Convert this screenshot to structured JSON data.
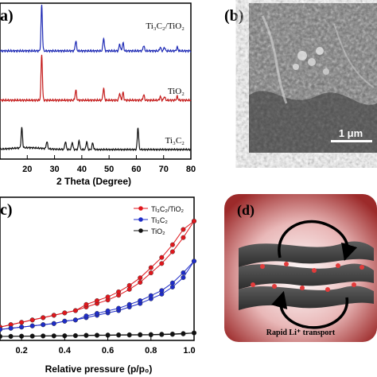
{
  "panels": {
    "a": {
      "label": "a)"
    },
    "b": {
      "label": "(b)",
      "scale_bar": "1 μm"
    },
    "c": {
      "label": "c)"
    },
    "d": {
      "label": "(d)",
      "caption": "Rapid Li⁺ transport"
    }
  },
  "chart_data": [
    {
      "type": "line",
      "panel": "a",
      "xlabel": "2 Theta (Degree)",
      "xlim": [
        10,
        80
      ],
      "x_ticks": [
        "20",
        "30",
        "40",
        "50",
        "60",
        "70",
        "80"
      ],
      "series": [
        {
          "name": "Ti₃C₂/TiO₂",
          "color": "#1f2bb5",
          "peaks": [
            [
              25.3,
              1.0
            ],
            [
              37.8,
              0.22
            ],
            [
              48.0,
              0.28
            ],
            [
              53.9,
              0.15
            ],
            [
              55.1,
              0.18
            ],
            [
              62.7,
              0.12
            ],
            [
              68.8,
              0.08
            ],
            [
              70.3,
              0.08
            ],
            [
              75.0,
              0.08
            ]
          ]
        },
        {
          "name": "TiO₂",
          "color": "#c41a1a",
          "peaks": [
            [
              25.3,
              1.0
            ],
            [
              37.8,
              0.22
            ],
            [
              48.0,
              0.26
            ],
            [
              53.9,
              0.15
            ],
            [
              55.1,
              0.17
            ],
            [
              62.7,
              0.12
            ],
            [
              68.8,
              0.08
            ],
            [
              70.3,
              0.08
            ],
            [
              75.0,
              0.08
            ]
          ]
        },
        {
          "name": "Ti₃C₂",
          "color": "#111111",
          "peaks": [
            [
              18.0,
              0.55
            ],
            [
              27.2,
              0.2
            ],
            [
              34.0,
              0.22
            ],
            [
              36.5,
              0.2
            ],
            [
              39.0,
              0.25
            ],
            [
              41.8,
              0.22
            ],
            [
              44.0,
              0.18
            ],
            [
              60.6,
              0.6
            ]
          ]
        }
      ]
    },
    {
      "type": "line",
      "panel": "c",
      "xlabel": "Relative pressure (p/p₀)",
      "xlim": [
        0.1,
        1.0
      ],
      "x_ticks": [
        "0.2",
        "0.4",
        "0.6",
        "0.8",
        "1.0"
      ],
      "legend": "top-right",
      "series": [
        {
          "name": "Ti₃C₂/TiO₂",
          "color": "#e0161c",
          "x": [
            0.1,
            0.15,
            0.2,
            0.25,
            0.3,
            0.35,
            0.4,
            0.45,
            0.5,
            0.55,
            0.6,
            0.65,
            0.7,
            0.75,
            0.8,
            0.85,
            0.9,
            0.95,
            1.0
          ],
          "y": [
            0.1,
            0.12,
            0.14,
            0.16,
            0.18,
            0.2,
            0.22,
            0.24,
            0.27,
            0.3,
            0.33,
            0.37,
            0.42,
            0.48,
            0.56,
            0.64,
            0.74,
            0.86,
            1.0
          ]
        },
        {
          "name": "Ti₃C₂",
          "color": "#1e2cc8",
          "x": [
            0.1,
            0.15,
            0.2,
            0.25,
            0.3,
            0.35,
            0.4,
            0.45,
            0.5,
            0.55,
            0.6,
            0.65,
            0.7,
            0.75,
            0.8,
            0.85,
            0.9,
            0.95,
            1.0
          ],
          "y": [
            0.08,
            0.09,
            0.1,
            0.11,
            0.12,
            0.13,
            0.15,
            0.16,
            0.18,
            0.2,
            0.22,
            0.24,
            0.27,
            0.3,
            0.34,
            0.38,
            0.44,
            0.52,
            0.66
          ]
        },
        {
          "name": "TiO₂",
          "color": "#111111",
          "x": [
            0.1,
            0.15,
            0.2,
            0.25,
            0.3,
            0.35,
            0.4,
            0.45,
            0.5,
            0.55,
            0.6,
            0.65,
            0.7,
            0.75,
            0.8,
            0.85,
            0.9,
            0.95,
            1.0
          ],
          "y": [
            0.02,
            0.021,
            0.022,
            0.023,
            0.024,
            0.025,
            0.026,
            0.027,
            0.028,
            0.029,
            0.03,
            0.031,
            0.032,
            0.033,
            0.034,
            0.036,
            0.038,
            0.042,
            0.05
          ]
        }
      ]
    }
  ]
}
